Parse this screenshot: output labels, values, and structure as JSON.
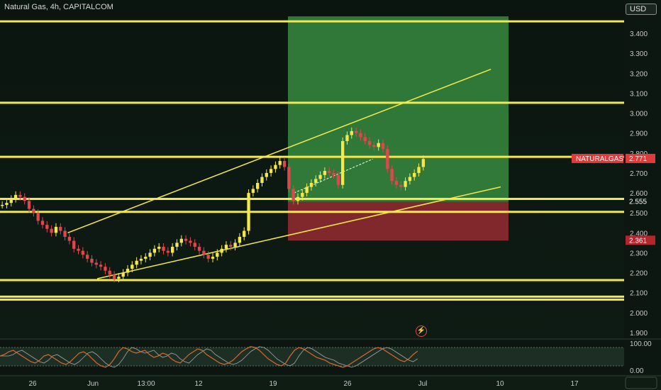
{
  "header": {
    "symbol_title": "Natural Gas, 4h, CAPITALCOM"
  },
  "currency_button": {
    "label": "USD"
  },
  "alert_icon": "lightning-icon",
  "price_axis": {
    "ticks": [
      "3.400",
      "3.300",
      "3.200",
      "3.100",
      "3.000",
      "2.900",
      "2.800",
      "2.700",
      "2.600",
      "2.500",
      "2.400",
      "2.300",
      "2.200",
      "2.100",
      "2.000",
      "1.900"
    ]
  },
  "time_axis": {
    "labels": [
      "26",
      "Jun",
      "13:00",
      "12",
      "19",
      "26",
      "Jul",
      "10",
      "17"
    ]
  },
  "oscillator_axis": {
    "ticks": [
      "100.00",
      "0.00"
    ]
  },
  "price_tags": {
    "symbol_tag": "NATURALGAS",
    "last_price": "2.771",
    "mark_price": "2.555",
    "stop_price": "2.361"
  },
  "colors": {
    "level_line": "#f5e84a",
    "bull_candle": "#f5e84a",
    "bear_candle": "#e0474c",
    "profit_zone": "#3c9a46",
    "loss_zone": "#8e2a30",
    "oscillator_line": "#d86a2a",
    "oscillator_fill": "#2c4636"
  },
  "chart_data": {
    "type": "candlestick",
    "title": "Natural Gas, 4h, CAPITALCOM",
    "y_range": [
      1.87,
      3.49
    ],
    "x_range": [
      "May 22",
      "Jul 22"
    ],
    "horizontal_levels": [
      3.46,
      3.052,
      2.781,
      2.57,
      2.505,
      2.163,
      2.08,
      2.065
    ],
    "close_series": [
      2.54,
      2.55,
      2.57,
      2.59,
      2.58,
      2.56,
      2.52,
      2.5,
      2.46,
      2.44,
      2.42,
      2.4,
      2.43,
      2.41,
      2.38,
      2.36,
      2.32,
      2.31,
      2.29,
      2.27,
      2.25,
      2.24,
      2.23,
      2.21,
      2.19,
      2.17,
      2.18,
      2.2,
      2.22,
      2.24,
      2.26,
      2.27,
      2.28,
      2.3,
      2.32,
      2.33,
      2.31,
      2.3,
      2.33,
      2.35,
      2.37,
      2.36,
      2.35,
      2.33,
      2.31,
      2.29,
      2.27,
      2.28,
      2.3,
      2.32,
      2.34,
      2.33,
      2.35,
      2.38,
      2.41,
      2.6,
      2.62,
      2.65,
      2.68,
      2.7,
      2.72,
      2.74,
      2.76,
      2.73,
      2.62,
      2.56,
      2.58,
      2.6,
      2.63,
      2.65,
      2.67,
      2.69,
      2.71,
      2.7,
      2.69,
      2.64,
      2.86,
      2.89,
      2.91,
      2.9,
      2.88,
      2.86,
      2.84,
      2.83,
      2.85,
      2.82,
      2.72,
      2.66,
      2.64,
      2.63,
      2.66,
      2.68,
      2.7,
      2.73,
      2.77
    ],
    "trendlines": [
      {
        "from": [
          "May 30",
          2.4
        ],
        "to": [
          "Jul 11",
          3.22
        ]
      },
      {
        "from": [
          "Jun 1",
          2.17
        ],
        "to": [
          "Jul 12",
          2.63
        ]
      },
      {
        "from": [
          "Jun 21",
          2.6
        ],
        "to": [
          "Jun 29",
          2.77
        ]
      }
    ],
    "position": {
      "entry": 2.555,
      "target": 3.485,
      "stop": 2.361
    },
    "oscillator": {
      "range": [
        0,
        100
      ],
      "values": [
        55,
        60,
        70,
        75,
        65,
        55,
        45,
        35,
        30,
        40,
        55,
        60,
        50,
        40,
        30,
        25,
        35,
        50,
        65,
        70,
        60,
        45,
        30,
        20,
        15,
        25,
        45,
        70,
        85,
        80,
        70,
        65,
        70,
        75,
        60,
        50,
        55,
        65,
        60,
        45,
        35,
        30,
        45,
        60,
        70,
        80,
        75,
        60,
        50,
        40,
        30,
        25,
        30,
        40,
        55,
        70,
        80,
        88,
        85,
        75,
        60,
        45,
        35,
        25,
        20,
        30,
        55,
        75,
        85,
        80,
        70,
        60,
        50,
        45,
        40,
        30,
        25,
        20,
        15,
        20,
        30,
        40,
        50,
        60,
        70,
        80,
        85,
        80,
        70,
        60,
        50,
        40,
        35,
        45,
        60,
        72
      ]
    }
  }
}
